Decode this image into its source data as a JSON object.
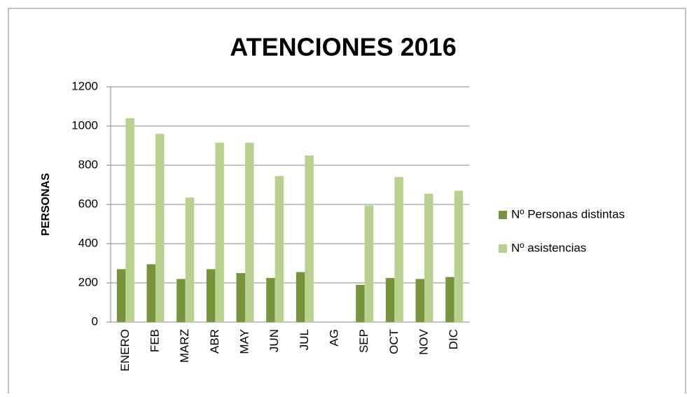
{
  "chart_data": {
    "type": "bar",
    "title": "ATENCIONES 2016",
    "y_label": "PERSONAS",
    "categories": [
      "ENERO",
      "FEB",
      "MARZ",
      "ABR",
      "MAY",
      "JUN",
      "JUL",
      "AG",
      "SEP",
      "OCT",
      "NOV",
      "DIC"
    ],
    "series": [
      {
        "name": "Nº Personas distintas",
        "color": "#77933c",
        "values": [
          270,
          295,
          220,
          270,
          250,
          225,
          255,
          null,
          190,
          225,
          220,
          230
        ]
      },
      {
        "name": "Nº asistencias",
        "color": "#b9d18f",
        "values": [
          1040,
          960,
          635,
          915,
          915,
          745,
          850,
          null,
          595,
          740,
          655,
          670
        ]
      }
    ],
    "ylim": [
      0,
      1200
    ],
    "yticks": [
      0,
      200,
      400,
      600,
      800,
      1000,
      1200
    ],
    "grid": true,
    "legend": "right"
  }
}
